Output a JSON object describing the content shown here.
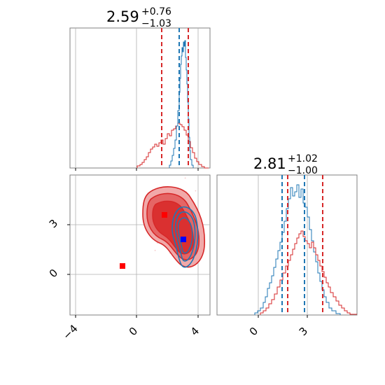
{
  "colors": {
    "blue": "#1f77b4",
    "red": "#d62728",
    "grid": "#b0b0b0",
    "marker_red": "#ff0000",
    "marker_blue": "#0000ff"
  },
  "titles": {
    "param1": {
      "main": "2.59",
      "sup": "+0.76",
      "sub": "−1.03"
    },
    "param2": {
      "main": "2.81",
      "sup": "+1.02",
      "sub": "−1.00"
    }
  },
  "chart_data": [
    {
      "type": "histogram",
      "panel": "top-left marginal",
      "xlim": [
        -4.8,
        4.8
      ],
      "series": [
        {
          "color": "#1f77b4",
          "peak_x": 3.2,
          "range": [
            2.1,
            4.1
          ],
          "quantiles": [
            2.59
          ],
          "quantile_lines": [
            2.9
          ]
        },
        {
          "color": "#d62728",
          "peak_x": 2.8,
          "range": [
            0.0,
            5.0
          ],
          "quantile_lines": [
            1.6,
            3.4
          ]
        }
      ],
      "summary": {
        "median": 2.59,
        "plus": 0.76,
        "minus": 1.03
      }
    },
    {
      "type": "histogram",
      "panel": "bottom-right marginal",
      "xlim": [
        -2.0,
        6.2
      ],
      "xticks": [
        0,
        3
      ],
      "xticklabels": [
        "0",
        "3"
      ],
      "series": [
        {
          "color": "#1f77b4",
          "peak_x": 2.0,
          "range": [
            -0.2,
            4.8
          ],
          "quantile_lines": [
            1.4,
            2.8
          ]
        },
        {
          "color": "#d62728",
          "peak_x": 2.6,
          "range": [
            0.2,
            6.2
          ],
          "quantile_lines": [
            1.8,
            3.8
          ]
        }
      ],
      "summary": {
        "median": 2.81,
        "plus": 1.02,
        "minus": 1.0
      }
    },
    {
      "type": "scatter",
      "panel": "bottom-left joint",
      "xlim": [
        -4.8,
        4.8
      ],
      "ylim": [
        -2.5,
        6.0
      ],
      "xticks": [
        -4,
        0,
        4
      ],
      "xticklabels": [
        "−4",
        "0",
        "4"
      ],
      "yticks": [
        0,
        3
      ],
      "yticklabels": [
        "0",
        "3"
      ],
      "contours": [
        {
          "color": "#d62728",
          "center": [
            2.2,
            3.4
          ]
        },
        {
          "color": "#1f77b4",
          "center": [
            3.0,
            2.3
          ]
        }
      ],
      "markers": [
        {
          "color": "#ff0000",
          "x": -0.8,
          "y": 0.5
        },
        {
          "color": "#ff0000",
          "x": 1.8,
          "y": 3.7
        },
        {
          "color": "#0000ff",
          "x": 3.1,
          "y": 2.1
        }
      ]
    }
  ]
}
